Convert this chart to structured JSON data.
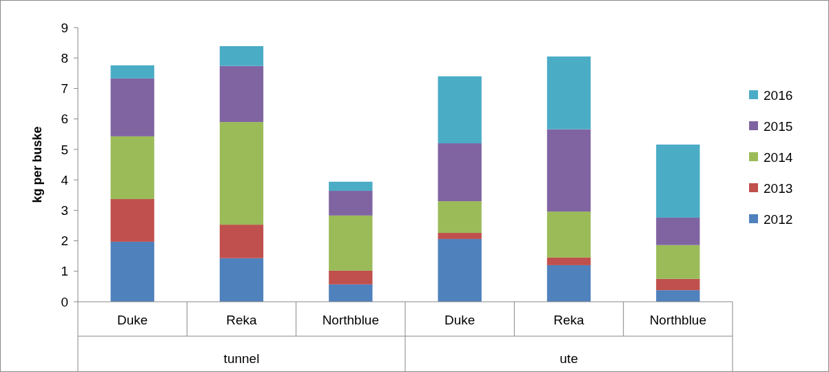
{
  "chart_data": {
    "type": "bar",
    "stacked": true,
    "ylabel": "kg per buske",
    "categories": [
      "Duke",
      "Reka",
      "Northblue",
      "Duke",
      "Reka",
      "Northblue"
    ],
    "series": [
      {
        "name": "2012",
        "color": "#4f81bd",
        "values": [
          1.97,
          1.43,
          0.57,
          2.06,
          1.2,
          0.38
        ]
      },
      {
        "name": "2013",
        "color": "#c0504d",
        "values": [
          1.4,
          1.1,
          0.45,
          0.2,
          0.25,
          0.37
        ]
      },
      {
        "name": "2014",
        "color": "#9bbb59",
        "values": [
          2.06,
          3.37,
          1.81,
          1.04,
          1.51,
          1.11
        ]
      },
      {
        "name": "2015",
        "color": "#8064a2",
        "values": [
          1.9,
          1.84,
          0.81,
          1.9,
          2.7,
          0.9
        ]
      },
      {
        "name": "2016",
        "color": "#4bacc6",
        "values": [
          0.43,
          0.65,
          0.3,
          2.2,
          2.39,
          2.4
        ]
      }
    ],
    "annotations": [
      "tunnel",
      "ute"
    ],
    "ylim": [
      0,
      9
    ],
    "yticks": [
      0,
      1,
      2,
      3,
      4,
      5,
      6,
      7,
      8,
      9
    ],
    "legend": "right"
  }
}
